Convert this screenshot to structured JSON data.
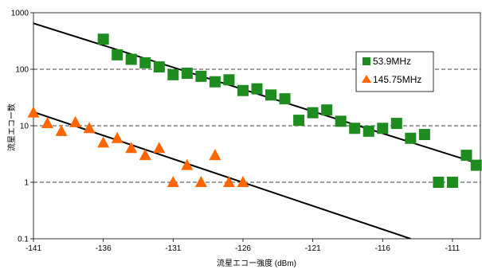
{
  "chart_data": {
    "type": "scatter",
    "title": "",
    "xlabel": "流星エコー強度 (dBm)",
    "ylabel": "流星エコー数",
    "xlim": [
      -141,
      -109
    ],
    "ylim": [
      0.1,
      1000
    ],
    "yscale": "log",
    "x_ticks": [
      -141,
      -136,
      -131,
      -126,
      -121,
      -116,
      -111
    ],
    "y_ticks": [
      0.1,
      1,
      10,
      100,
      1000
    ],
    "y_tick_labels": [
      "0.1",
      "1",
      "10",
      "100",
      "1000"
    ],
    "grid": "horizontal dashed",
    "legend_position": "right",
    "series": [
      {
        "name": "53.9MHz",
        "marker": "square",
        "color": "#1e8c1e",
        "points": [
          [
            -136,
            340
          ],
          [
            -135,
            180
          ],
          [
            -134,
            150
          ],
          [
            -133,
            130
          ],
          [
            -132,
            110
          ],
          [
            -131,
            80
          ],
          [
            -130,
            85
          ],
          [
            -129,
            75
          ],
          [
            -128,
            60
          ],
          [
            -127,
            65
          ],
          [
            -126,
            42
          ],
          [
            -125,
            45
          ],
          [
            -124,
            35
          ],
          [
            -123,
            30
          ],
          [
            -122,
            12.5
          ],
          [
            -121,
            17
          ],
          [
            -120,
            19
          ],
          [
            -119,
            12
          ],
          [
            -118,
            9
          ],
          [
            -117,
            8
          ],
          [
            -116,
            9
          ],
          [
            -115,
            11
          ],
          [
            -114,
            6
          ],
          [
            -113,
            7
          ],
          [
            -112,
            1
          ],
          [
            -111,
            1
          ],
          [
            -110,
            3
          ],
          [
            -109.3,
            2
          ]
        ],
        "trend": [
          [
            -141,
            650
          ],
          [
            -109.3,
            2.2
          ]
        ]
      },
      {
        "name": "145.75MHz",
        "marker": "triangle",
        "color": "#ff6600",
        "points": [
          [
            -141,
            17
          ],
          [
            -140,
            11
          ],
          [
            -139,
            8
          ],
          [
            -138,
            11.5
          ],
          [
            -137,
            9
          ],
          [
            -136,
            5
          ],
          [
            -135,
            6
          ],
          [
            -134,
            4
          ],
          [
            -133,
            3
          ],
          [
            -132,
            4
          ],
          [
            -131,
            1
          ],
          [
            -130,
            2
          ],
          [
            -129,
            1
          ],
          [
            -128,
            3
          ],
          [
            -127,
            1
          ],
          [
            -126,
            1
          ]
        ],
        "trend": [
          [
            -141,
            17.5
          ],
          [
            -114,
            0.1
          ]
        ]
      }
    ]
  }
}
